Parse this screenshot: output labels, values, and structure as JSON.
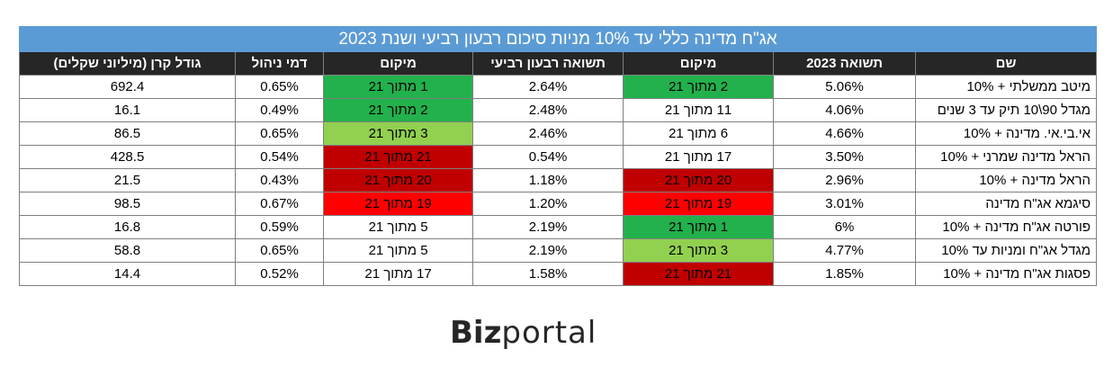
{
  "title": "אג\"ח מדינה כללי עד 10% מניות סיכום רבעון רביעי ושנת 2023",
  "headers": [
    "שם",
    "תשואה 2023",
    "מיקום",
    "תשואה רבעון רביעי",
    "מיקום",
    "דמי ניהול",
    "גודל קרן (מיליוני שקלים)"
  ],
  "colors": {
    "green": "#22b14c",
    "light_green": "#92d050",
    "dark_red": "#c00000",
    "red": "#ff0000",
    "header_bg": "#262626",
    "title_bg": "#5b9bd5"
  },
  "rows": [
    {
      "name": "מיטב ממשלתי + 10%",
      "yield2023": "5.06%",
      "rank1": "2 מתוך 21",
      "rank1_color": "#22b14c",
      "q4": "2.64%",
      "rank2": "1 מתוך 21",
      "rank2_color": "#22b14c",
      "fee": "0.65%",
      "size": "692.4"
    },
    {
      "name": "מגדל 90\\10 תיק עד 3 שנים",
      "yield2023": "4.06%",
      "rank1": "11 מתוך 21",
      "rank1_color": "",
      "q4": "2.48%",
      "rank2": "2 מתוך 21",
      "rank2_color": "#22b14c",
      "fee": "0.49%",
      "size": "16.1"
    },
    {
      "name": "אי.בי.אי. מדינה + 10%",
      "yield2023": "4.66%",
      "rank1": "6 מתוך 21",
      "rank1_color": "",
      "q4": "2.46%",
      "rank2": "3 מתוך 21",
      "rank2_color": "#92d050",
      "fee": "0.65%",
      "size": "86.5"
    },
    {
      "name": "הראל מדינה שמרני + 10%",
      "yield2023": "3.50%",
      "rank1": "17 מתוך 21",
      "rank1_color": "",
      "q4": "0.54%",
      "rank2": "21 מתוך 21",
      "rank2_color": "#c00000",
      "fee": "0.54%",
      "size": "428.5"
    },
    {
      "name": "הראל מדינה + 10%",
      "yield2023": "2.96%",
      "rank1": "20 מתוך 21",
      "rank1_color": "#c00000",
      "q4": "1.18%",
      "rank2": "20 מתוך 21",
      "rank2_color": "#c00000",
      "fee": "0.43%",
      "size": "21.5"
    },
    {
      "name": "סיגמא אג\"ח מדינה",
      "yield2023": "3.01%",
      "rank1": "19 מתוך 21",
      "rank1_color": "#ff0000",
      "q4": "1.20%",
      "rank2": "19 מתוך 21",
      "rank2_color": "#ff0000",
      "fee": "0.67%",
      "size": "98.5"
    },
    {
      "name": "פורטה אג\"ח מדינה + 10%",
      "yield2023": "6%",
      "rank1": "1 מתוך 21",
      "rank1_color": "#22b14c",
      "q4": "2.19%",
      "rank2": "5 מתוך 21",
      "rank2_color": "",
      "fee": "0.59%",
      "size": "16.8"
    },
    {
      "name": "מגדל אג\"ח ומניות עד 10%",
      "yield2023": "4.77%",
      "rank1": "3 מתוך 21",
      "rank1_color": "#92d050",
      "q4": "2.19%",
      "rank2": "5 מתוך 21",
      "rank2_color": "",
      "fee": "0.65%",
      "size": "58.8"
    },
    {
      "name": "פסגות אג\"ח מדינה + 10%",
      "yield2023": "1.85%",
      "rank1": "21 מתוך 21",
      "rank1_color": "#c00000",
      "q4": "1.58%",
      "rank2": "17 מתוך 21",
      "rank2_color": "",
      "fee": "0.52%",
      "size": "14.4"
    }
  ],
  "logo": {
    "bold": "Biz",
    "light": "portal"
  }
}
